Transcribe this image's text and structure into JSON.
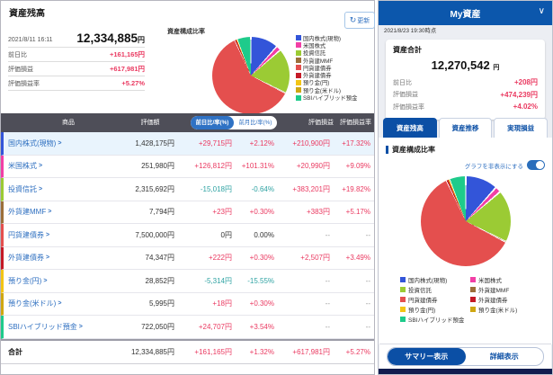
{
  "colors": {
    "positive": "#ea3a61",
    "negative": "#2fa3a3",
    "muted": "#999999",
    "link_blue": "#2e6fc0",
    "table_header": "#4e4e58",
    "mobile_header_blue": "#0c57ac",
    "tab_blue": "#0b4fa5",
    "bottom_bar_navy": "#111c4f"
  },
  "left_panel": {
    "title": "資産残高",
    "refresh_label": "更新",
    "timestamp": "2021/8/11 16:11",
    "total_amount": "12,334,885",
    "currency": "円",
    "summary_rows": [
      {
        "label": "前日比",
        "value": "+161,165円"
      },
      {
        "label": "評価損益",
        "value": "+617,981円"
      },
      {
        "label": "評価損益率",
        "value": "+5.27%"
      }
    ],
    "pie_title": "資産構成比率",
    "table": {
      "col_product": "商品",
      "col_value": "評価額",
      "toggle_day": "前日比/率(%)",
      "toggle_month": "前月比/率(%)",
      "col_pl": "評価損益",
      "col_pl_rate": "評価損益率",
      "rows": [
        {
          "name": "国内株式(現物)",
          "value": "1,428,175円",
          "day": "+29,715円",
          "day_rate": "+2.12%",
          "pl": "+210,900円",
          "pl_rate": "+17.32%"
        },
        {
          "name": "米国株式",
          "value": "251,980円",
          "day": "+126,812円",
          "day_rate": "+101.31%",
          "pl": "+20,990円",
          "pl_rate": "+9.09%"
        },
        {
          "name": "投資信託",
          "value": "2,315,692円",
          "day": "-15,018円",
          "day_rate": "-0.64%",
          "pl": "+383,201円",
          "pl_rate": "+19.82%"
        },
        {
          "name": "外貨建MMF",
          "value": "7,794円",
          "day": "+23円",
          "day_rate": "+0.30%",
          "pl": "+383円",
          "pl_rate": "+5.17%"
        },
        {
          "name": "円貨建債券",
          "value": "7,500,000円",
          "day": "0円",
          "day_rate": "0.00%",
          "pl": "--",
          "pl_rate": "--"
        },
        {
          "name": "外貨建債券",
          "value": "74,347円",
          "day": "+222円",
          "day_rate": "+0.30%",
          "pl": "+2,507円",
          "pl_rate": "+3.49%"
        },
        {
          "name": "預り金(円)",
          "value": "28,852円",
          "day": "-5,314円",
          "day_rate": "-15.55%",
          "pl": "--",
          "pl_rate": "--"
        },
        {
          "name": "預り金(米ドル)",
          "value": "5,995円",
          "day": "+18円",
          "day_rate": "+0.30%",
          "pl": "--",
          "pl_rate": "--"
        },
        {
          "name": "SBIハイブリッド預金",
          "value": "722,050円",
          "day": "+24,707円",
          "day_rate": "+3.54%",
          "pl": "--",
          "pl_rate": "--"
        }
      ],
      "total_label": "合計",
      "total": {
        "value": "12,334,885円",
        "day": "+161,165円",
        "day_rate": "+1.32%",
        "pl": "+617,981円",
        "pl_rate": "+5.27%"
      }
    }
  },
  "right_panel": {
    "header_title": "My資産",
    "timestamp": "2021/8/23 19:30時点",
    "total_label": "資産合計",
    "total_amount": "12,270,542",
    "currency": "円",
    "summary_rows": [
      {
        "label": "前日比",
        "value": "+208円"
      },
      {
        "label": "評価損益",
        "value": "+474,239円"
      },
      {
        "label": "評価損益率",
        "value": "+4.02%"
      }
    ],
    "tabs": [
      {
        "label": "資産残高",
        "active": true
      },
      {
        "label": "資産推移",
        "active": false
      },
      {
        "label": "実現損益",
        "active": false
      }
    ],
    "section_title": "資産構成比率",
    "toggle_label": "グラフを非表示にする",
    "buttons": {
      "summary": "サマリー表示",
      "detail": "詳細表示"
    }
  },
  "chart_data": [
    {
      "type": "pie",
      "title": "資産構成比率 (PC画面)",
      "labels": [
        "国内株式(現物)",
        "米国株式",
        "投資信託",
        "外貨建MMF",
        "円貨建債券",
        "外貨建債券",
        "預り金(円)",
        "預り金(米ドル)",
        "SBIハイブリッド預金"
      ],
      "values_yen": [
        1428175,
        251980,
        2315692,
        7794,
        7500000,
        74347,
        28852,
        5995,
        722050
      ],
      "percents": [
        11.58,
        2.04,
        18.77,
        0.06,
        60.8,
        0.6,
        0.23,
        0.05,
        5.87
      ],
      "colors": [
        "#3355d9",
        "#f23fa6",
        "#9bcb34",
        "#9c6f3a",
        "#e44f4e",
        "#c51a27",
        "#f3c515",
        "#cfa712",
        "#1ecb8b"
      ],
      "legend_position": "right",
      "total_yen": 12334885
    },
    {
      "type": "pie",
      "title": "資産構成比率 (アプリ画面)",
      "labels": [
        "国内株式(現物)",
        "米国株式",
        "投資信託",
        "外貨建MMF",
        "円貨建債券",
        "外貨建債券",
        "預り金(円)",
        "預り金(米ドル)",
        "SBIハイブリッド預金"
      ],
      "percents": [
        11.6,
        2.1,
        18.8,
        0.1,
        60.4,
        0.6,
        0.2,
        0.2,
        6.0
      ],
      "colors": [
        "#3355d9",
        "#f23fa6",
        "#9bcb34",
        "#9c6f3a",
        "#e44f4e",
        "#c51a27",
        "#f3c515",
        "#cfa712",
        "#1ecb8b"
      ],
      "legend_position": "bottom",
      "total_yen": 12270542
    }
  ]
}
